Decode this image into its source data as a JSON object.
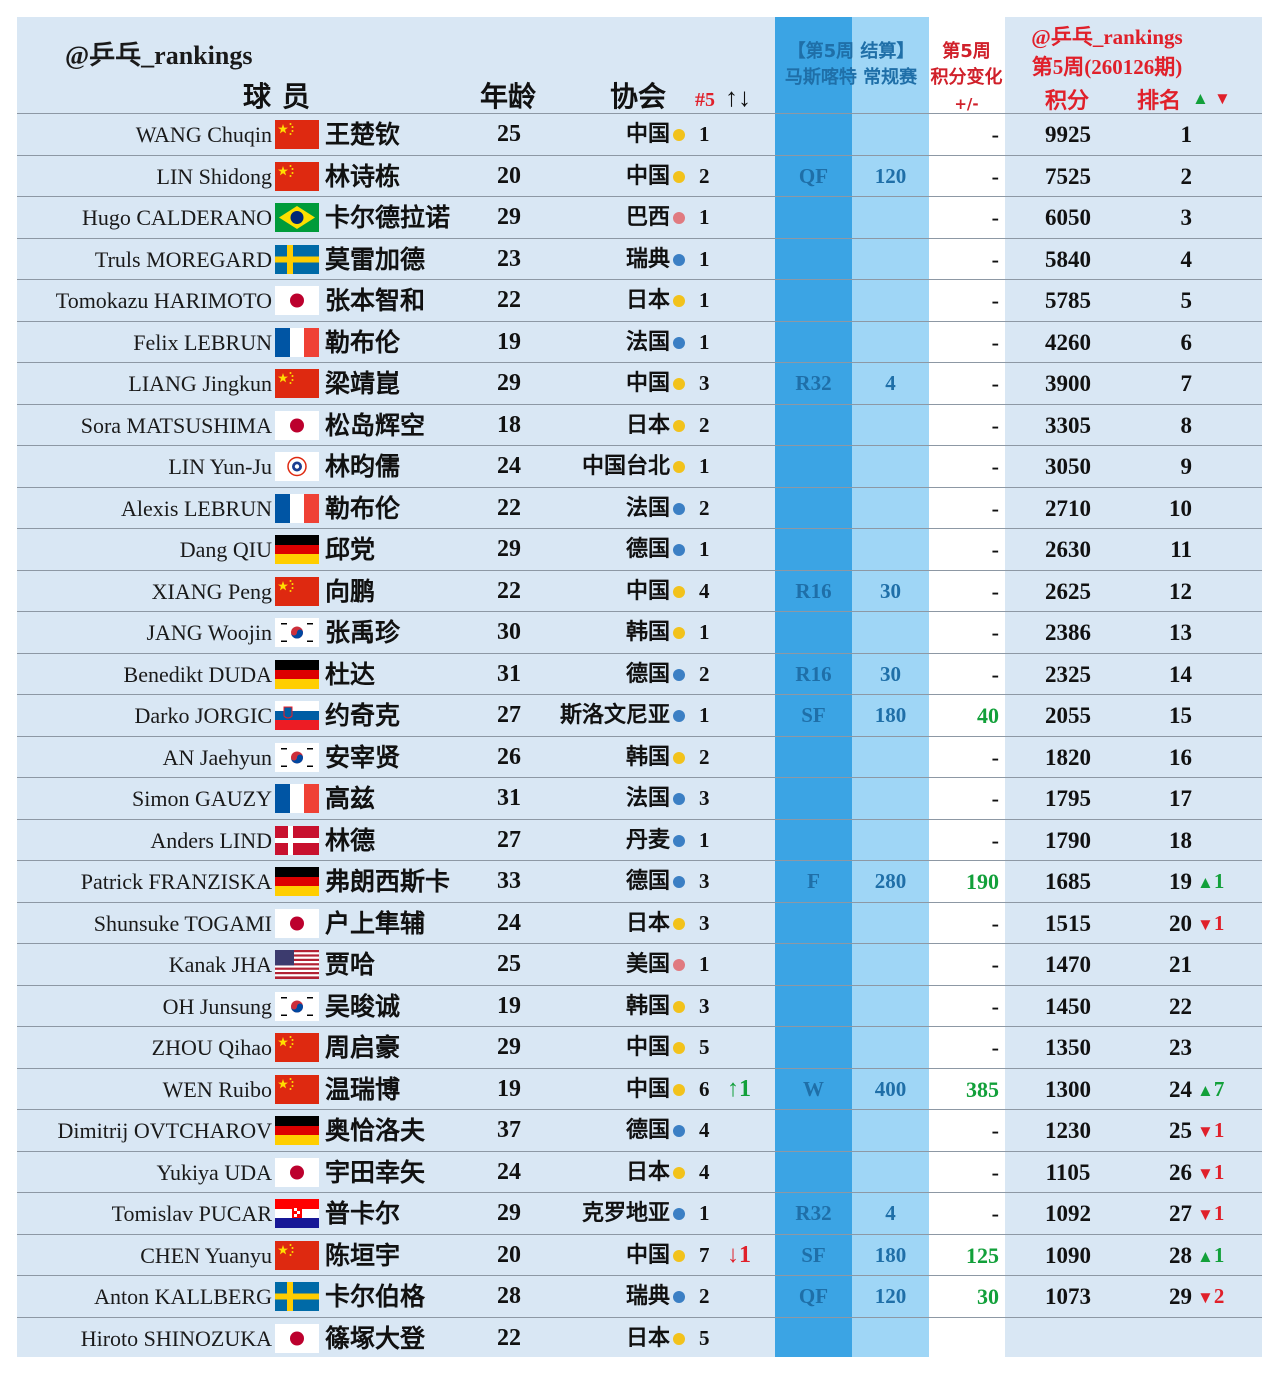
{
  "header": {
    "handle": "@乒乓_rankings",
    "player_col": "球 员",
    "age_col": "年龄",
    "assoc_col": "协会",
    "seed_col": "#5",
    "seed_arrows": "↑↓",
    "event_line1": "【第5周 结算】",
    "event_line2": "马斯喀特 常规赛",
    "change_line1": "第5周",
    "change_line2": "积分变化",
    "change_line3": "+/-",
    "rank_line1": "@乒乓_rankings",
    "rank_line2": "第5周(260126期)",
    "points_col": "积分",
    "rank_col": "排名",
    "up_sym": "▲",
    "down_sym": "▼"
  },
  "colors": {
    "up": "#12a03a",
    "down": "#e0202a",
    "assoc_gold": "#f2c21b",
    "assoc_blue": "#3b7fc4",
    "assoc_red": "#e07a80"
  },
  "rows": [
    {
      "name": "WANG Chuqin",
      "flag": "china",
      "cname": "王楚钦",
      "age": "25",
      "assoc": "中国",
      "dot": "gold",
      "seed": "1",
      "seed_move": "",
      "seed_dir": "",
      "result": "",
      "result_pts": "",
      "change": "-",
      "change_dir": "",
      "points": "9925",
      "rank": "1",
      "rank_move": "",
      "rank_dir": ""
    },
    {
      "name": "LIN Shidong",
      "flag": "china",
      "cname": "林诗栋",
      "age": "20",
      "assoc": "中国",
      "dot": "gold",
      "seed": "2",
      "seed_move": "",
      "seed_dir": "",
      "result": "QF",
      "result_pts": "120",
      "change": "-",
      "change_dir": "",
      "points": "7525",
      "rank": "2",
      "rank_move": "",
      "rank_dir": ""
    },
    {
      "name": "Hugo CALDERANO",
      "flag": "brazil",
      "cname": "卡尔德拉诺",
      "age": "29",
      "assoc": "巴西",
      "dot": "red",
      "seed": "1",
      "seed_move": "",
      "seed_dir": "",
      "result": "",
      "result_pts": "",
      "change": "-",
      "change_dir": "",
      "points": "6050",
      "rank": "3",
      "rank_move": "",
      "rank_dir": ""
    },
    {
      "name": "Truls MOREGARD",
      "flag": "sweden",
      "cname": "莫雷加德",
      "age": "23",
      "assoc": "瑞典",
      "dot": "blue",
      "seed": "1",
      "seed_move": "",
      "seed_dir": "",
      "result": "",
      "result_pts": "",
      "change": "-",
      "change_dir": "",
      "points": "5840",
      "rank": "4",
      "rank_move": "",
      "rank_dir": ""
    },
    {
      "name": "Tomokazu HARIMOTO",
      "flag": "japan",
      "cname": "张本智和",
      "age": "22",
      "assoc": "日本",
      "dot": "gold",
      "seed": "1",
      "seed_move": "",
      "seed_dir": "",
      "result": "",
      "result_pts": "",
      "change": "-",
      "change_dir": "",
      "points": "5785",
      "rank": "5",
      "rank_move": "",
      "rank_dir": ""
    },
    {
      "name": "Felix LEBRUN",
      "flag": "france",
      "cname": "勒布伦",
      "age": "19",
      "assoc": "法国",
      "dot": "blue",
      "seed": "1",
      "seed_move": "",
      "seed_dir": "",
      "result": "",
      "result_pts": "",
      "change": "-",
      "change_dir": "",
      "points": "4260",
      "rank": "6",
      "rank_move": "",
      "rank_dir": ""
    },
    {
      "name": "LIANG Jingkun",
      "flag": "china",
      "cname": "梁靖崑",
      "age": "29",
      "assoc": "中国",
      "dot": "gold",
      "seed": "3",
      "seed_move": "",
      "seed_dir": "",
      "result": "R32",
      "result_pts": "4",
      "change": "-",
      "change_dir": "",
      "points": "3900",
      "rank": "7",
      "rank_move": "",
      "rank_dir": ""
    },
    {
      "name": "Sora MATSUSHIMA",
      "flag": "japan",
      "cname": "松岛辉空",
      "age": "18",
      "assoc": "日本",
      "dot": "gold",
      "seed": "2",
      "seed_move": "",
      "seed_dir": "",
      "result": "",
      "result_pts": "",
      "change": "-",
      "change_dir": "",
      "points": "3305",
      "rank": "8",
      "rank_move": "",
      "rank_dir": ""
    },
    {
      "name": "LIN Yun-Ju",
      "flag": "tpe",
      "cname": "林昀儒",
      "age": "24",
      "assoc": "中国台北",
      "dot": "gold",
      "seed": "1",
      "seed_move": "",
      "seed_dir": "",
      "result": "",
      "result_pts": "",
      "change": "-",
      "change_dir": "",
      "points": "3050",
      "rank": "9",
      "rank_move": "",
      "rank_dir": ""
    },
    {
      "name": "Alexis LEBRUN",
      "flag": "france",
      "cname": "勒布伦",
      "age": "22",
      "assoc": "法国",
      "dot": "blue",
      "seed": "2",
      "seed_move": "",
      "seed_dir": "",
      "result": "",
      "result_pts": "",
      "change": "-",
      "change_dir": "",
      "points": "2710",
      "rank": "10",
      "rank_move": "",
      "rank_dir": ""
    },
    {
      "name": "Dang QIU",
      "flag": "germany",
      "cname": "邱党",
      "age": "29",
      "assoc": "德国",
      "dot": "blue",
      "seed": "1",
      "seed_move": "",
      "seed_dir": "",
      "result": "",
      "result_pts": "",
      "change": "-",
      "change_dir": "",
      "points": "2630",
      "rank": "11",
      "rank_move": "",
      "rank_dir": ""
    },
    {
      "name": "XIANG Peng",
      "flag": "china",
      "cname": "向鹏",
      "age": "22",
      "assoc": "中国",
      "dot": "gold",
      "seed": "4",
      "seed_move": "",
      "seed_dir": "",
      "result": "R16",
      "result_pts": "30",
      "change": "-",
      "change_dir": "",
      "points": "2625",
      "rank": "12",
      "rank_move": "",
      "rank_dir": ""
    },
    {
      "name": "JANG Woojin",
      "flag": "korea",
      "cname": "张禹珍",
      "age": "30",
      "assoc": "韩国",
      "dot": "gold",
      "seed": "1",
      "seed_move": "",
      "seed_dir": "",
      "result": "",
      "result_pts": "",
      "change": "-",
      "change_dir": "",
      "points": "2386",
      "rank": "13",
      "rank_move": "",
      "rank_dir": ""
    },
    {
      "name": "Benedikt DUDA",
      "flag": "germany",
      "cname": "杜达",
      "age": "31",
      "assoc": "德国",
      "dot": "blue",
      "seed": "2",
      "seed_move": "",
      "seed_dir": "",
      "result": "R16",
      "result_pts": "30",
      "change": "-",
      "change_dir": "",
      "points": "2325",
      "rank": "14",
      "rank_move": "",
      "rank_dir": ""
    },
    {
      "name": "Darko JORGIC",
      "flag": "slovenia",
      "cname": "约奇克",
      "age": "27",
      "assoc": "斯洛文尼亚",
      "dot": "blue",
      "seed": "1",
      "seed_move": "",
      "seed_dir": "",
      "result": "SF",
      "result_pts": "180",
      "change": "40",
      "change_dir": "up",
      "points": "2055",
      "rank": "15",
      "rank_move": "",
      "rank_dir": ""
    },
    {
      "name": "AN Jaehyun",
      "flag": "korea",
      "cname": "安宰贤",
      "age": "26",
      "assoc": "韩国",
      "dot": "gold",
      "seed": "2",
      "seed_move": "",
      "seed_dir": "",
      "result": "",
      "result_pts": "",
      "change": "-",
      "change_dir": "",
      "points": "1820",
      "rank": "16",
      "rank_move": "",
      "rank_dir": ""
    },
    {
      "name": "Simon GAUZY",
      "flag": "france",
      "cname": "高兹",
      "age": "31",
      "assoc": "法国",
      "dot": "blue",
      "seed": "3",
      "seed_move": "",
      "seed_dir": "",
      "result": "",
      "result_pts": "",
      "change": "-",
      "change_dir": "",
      "points": "1795",
      "rank": "17",
      "rank_move": "",
      "rank_dir": ""
    },
    {
      "name": "Anders LIND",
      "flag": "denmark",
      "cname": "林德",
      "age": "27",
      "assoc": "丹麦",
      "dot": "blue",
      "seed": "1",
      "seed_move": "",
      "seed_dir": "",
      "result": "",
      "result_pts": "",
      "change": "-",
      "change_dir": "",
      "points": "1790",
      "rank": "18",
      "rank_move": "",
      "rank_dir": ""
    },
    {
      "name": "Patrick FRANZISKA",
      "flag": "germany",
      "cname": "弗朗西斯卡",
      "age": "33",
      "assoc": "德国",
      "dot": "blue",
      "seed": "3",
      "seed_move": "",
      "seed_dir": "",
      "result": "F",
      "result_pts": "280",
      "change": "190",
      "change_dir": "up",
      "points": "1685",
      "rank": "19",
      "rank_move": "1",
      "rank_dir": "up"
    },
    {
      "name": "Shunsuke TOGAMI",
      "flag": "japan",
      "cname": "户上隼辅",
      "age": "24",
      "assoc": "日本",
      "dot": "gold",
      "seed": "3",
      "seed_move": "",
      "seed_dir": "",
      "result": "",
      "result_pts": "",
      "change": "-",
      "change_dir": "",
      "points": "1515",
      "rank": "20",
      "rank_move": "1",
      "rank_dir": "down"
    },
    {
      "name": "Kanak JHA",
      "flag": "usa",
      "cname": "贾哈",
      "age": "25",
      "assoc": "美国",
      "dot": "red",
      "seed": "1",
      "seed_move": "",
      "seed_dir": "",
      "result": "",
      "result_pts": "",
      "change": "-",
      "change_dir": "",
      "points": "1470",
      "rank": "21",
      "rank_move": "",
      "rank_dir": ""
    },
    {
      "name": "OH Junsung",
      "flag": "korea",
      "cname": "吴晙诚",
      "age": "19",
      "assoc": "韩国",
      "dot": "gold",
      "seed": "3",
      "seed_move": "",
      "seed_dir": "",
      "result": "",
      "result_pts": "",
      "change": "-",
      "change_dir": "",
      "points": "1450",
      "rank": "22",
      "rank_move": "",
      "rank_dir": ""
    },
    {
      "name": "ZHOU Qihao",
      "flag": "china",
      "cname": "周启豪",
      "age": "29",
      "assoc": "中国",
      "dot": "gold",
      "seed": "5",
      "seed_move": "",
      "seed_dir": "",
      "result": "",
      "result_pts": "",
      "change": "-",
      "change_dir": "",
      "points": "1350",
      "rank": "23",
      "rank_move": "",
      "rank_dir": ""
    },
    {
      "name": "WEN Ruibo",
      "flag": "china",
      "cname": "温瑞博",
      "age": "19",
      "assoc": "中国",
      "dot": "gold",
      "seed": "6",
      "seed_move": "↑1",
      "seed_dir": "up",
      "result": "W",
      "result_pts": "400",
      "change": "385",
      "change_dir": "up",
      "points": "1300",
      "rank": "24",
      "rank_move": "7",
      "rank_dir": "up"
    },
    {
      "name": "Dimitrij OVTCHAROV",
      "flag": "germany",
      "cname": "奥恰洛夫",
      "age": "37",
      "assoc": "德国",
      "dot": "blue",
      "seed": "4",
      "seed_move": "",
      "seed_dir": "",
      "result": "",
      "result_pts": "",
      "change": "-",
      "change_dir": "",
      "points": "1230",
      "rank": "25",
      "rank_move": "1",
      "rank_dir": "down"
    },
    {
      "name": "Yukiya UDA",
      "flag": "japan",
      "cname": "宇田幸矢",
      "age": "24",
      "assoc": "日本",
      "dot": "gold",
      "seed": "4",
      "seed_move": "",
      "seed_dir": "",
      "result": "",
      "result_pts": "",
      "change": "-",
      "change_dir": "",
      "points": "1105",
      "rank": "26",
      "rank_move": "1",
      "rank_dir": "down"
    },
    {
      "name": "Tomislav PUCAR",
      "flag": "croatia",
      "cname": "普卡尔",
      "age": "29",
      "assoc": "克罗地亚",
      "dot": "blue",
      "seed": "1",
      "seed_move": "",
      "seed_dir": "",
      "result": "R32",
      "result_pts": "4",
      "change": "-",
      "change_dir": "",
      "points": "1092",
      "rank": "27",
      "rank_move": "1",
      "rank_dir": "down"
    },
    {
      "name": "CHEN Yuanyu",
      "flag": "china",
      "cname": "陈垣宇",
      "age": "20",
      "assoc": "中国",
      "dot": "gold",
      "seed": "7",
      "seed_move": "↓1",
      "seed_dir": "down",
      "result": "SF",
      "result_pts": "180",
      "change": "125",
      "change_dir": "up",
      "points": "1090",
      "rank": "28",
      "rank_move": "1",
      "rank_dir": "up"
    },
    {
      "name": "Anton KALLBERG",
      "flag": "sweden",
      "cname": "卡尔伯格",
      "age": "28",
      "assoc": "瑞典",
      "dot": "blue",
      "seed": "2",
      "seed_move": "",
      "seed_dir": "",
      "result": "QF",
      "result_pts": "120",
      "change": "30",
      "change_dir": "up",
      "points": "1073",
      "rank": "29",
      "rank_move": "2",
      "rank_dir": "down"
    },
    {
      "name": "Hiroto SHINOZUKA",
      "flag": "japan",
      "cname": "篠塚大登",
      "age": "22",
      "assoc": "日本",
      "dot": "gold",
      "seed": "5",
      "seed_move": "",
      "seed_dir": "",
      "result": "",
      "result_pts": "",
      "change": "",
      "change_dir": "",
      "points": "",
      "rank": "",
      "rank_move": "",
      "rank_dir": ""
    }
  ]
}
